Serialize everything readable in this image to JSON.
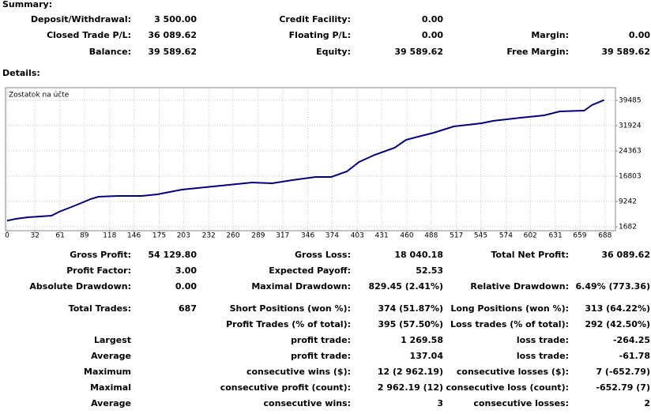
{
  "summary": {
    "title": "Summary:",
    "rows": [
      [
        {
          "label": "Deposit/Withdrawal:",
          "value": "3 500.00"
        },
        {
          "label": "Credit Facility:",
          "value": "0.00"
        },
        null
      ],
      [
        {
          "label": "Closed Trade P/L:",
          "value": "36 089.62"
        },
        {
          "label": "Floating P/L:",
          "value": "0.00"
        },
        {
          "label": "Margin:",
          "value": "0.00"
        }
      ],
      [
        {
          "label": "Balance:",
          "value": "39 589.62"
        },
        {
          "label": "Equity:",
          "value": "39 589.62"
        },
        {
          "label": "Free Margin:",
          "value": "39 589.62"
        }
      ]
    ]
  },
  "details": {
    "title": "Details:",
    "rows": [
      [
        {
          "label": "Gross Profit:",
          "value": "54 129.80"
        },
        {
          "label": "Gross Loss:",
          "value": "18 040.18"
        },
        {
          "label": "Total Net Profit:",
          "value": "36 089.62"
        }
      ],
      [
        {
          "label": "Profit Factor:",
          "value": "3.00"
        },
        {
          "label": "Expected Payoff:",
          "value": "52.53"
        },
        null
      ],
      [
        {
          "label": "Absolute Drawdown:",
          "value": "0.00"
        },
        {
          "label": "Maximal Drawdown:",
          "value": "829.45 (2.41%)"
        },
        {
          "label": "Relative Drawdown:",
          "value": "6.49% (773.36)"
        }
      ],
      [
        {
          "label": "Total Trades:",
          "value": "687"
        },
        {
          "label": "Short Positions (won %):",
          "value": "374 (51.87%)"
        },
        {
          "label": "Long Positions (won %):",
          "value": "313 (64.22%)"
        }
      ],
      [
        null,
        {
          "label": "Profit Trades (% of total):",
          "value": "395 (57.50%)"
        },
        {
          "label": "Loss trades (% of total):",
          "value": "292 (42.50%)"
        }
      ],
      [
        {
          "label": "Largest"
        },
        {
          "label": "profit trade:",
          "value": "1 269.58"
        },
        {
          "label": "loss trade:",
          "value": "-264.25"
        }
      ],
      [
        {
          "label": "Average"
        },
        {
          "label": "profit trade:",
          "value": "137.04"
        },
        {
          "label": "loss trade:",
          "value": "-61.78"
        }
      ],
      [
        {
          "label": "Maximum"
        },
        {
          "label": "consecutive wins ($):",
          "value": "12 (2 962.19)"
        },
        {
          "label": "consecutive losses ($):",
          "value": "7 (-652.79)"
        }
      ],
      [
        {
          "label": "Maximal"
        },
        {
          "label": "consecutive profit (count):",
          "value": "2 962.19 (12)"
        },
        {
          "label": "consecutive loss (count):",
          "value": "-652.79 (7)"
        }
      ],
      [
        {
          "label": "Average"
        },
        {
          "label": "consecutive wins:",
          "value": "3"
        },
        {
          "label": "consecutive losses:",
          "value": "2"
        }
      ]
    ]
  },
  "chart_data": {
    "type": "line",
    "title": "Zostatok na účte",
    "x": [
      0,
      10,
      24,
      51,
      60,
      74,
      83,
      96,
      105,
      128,
      155,
      173,
      201,
      228,
      255,
      282,
      305,
      328,
      355,
      373,
      391,
      405,
      423,
      446,
      459,
      473,
      491,
      514,
      546,
      559,
      591,
      618,
      636,
      664,
      673,
      687
    ],
    "series": [
      {
        "color": "#000080",
        "values": [
          3500,
          4040,
          4517,
          4990,
          6170,
          7589,
          8534,
          9950,
          10660,
          10900,
          10900,
          11370,
          12790,
          13500,
          14200,
          14910,
          14680,
          15620,
          16570,
          16570,
          18220,
          21060,
          23180,
          25310,
          27670,
          28620,
          29800,
          31690,
          32630,
          33340,
          34290,
          35000,
          36180,
          36410,
          38070,
          39590
        ]
      }
    ],
    "xlim": [
      0,
      700
    ],
    "ylim": [
      501,
      43265
    ],
    "xticks": [
      0,
      32,
      61,
      89,
      118,
      146,
      175,
      203,
      232,
      260,
      289,
      317,
      346,
      374,
      403,
      431,
      460,
      488,
      517,
      545,
      574,
      602,
      631,
      659,
      688
    ],
    "yticks": [
      1682,
      9242,
      16803,
      24363,
      31924,
      39485
    ],
    "grid": true
  }
}
